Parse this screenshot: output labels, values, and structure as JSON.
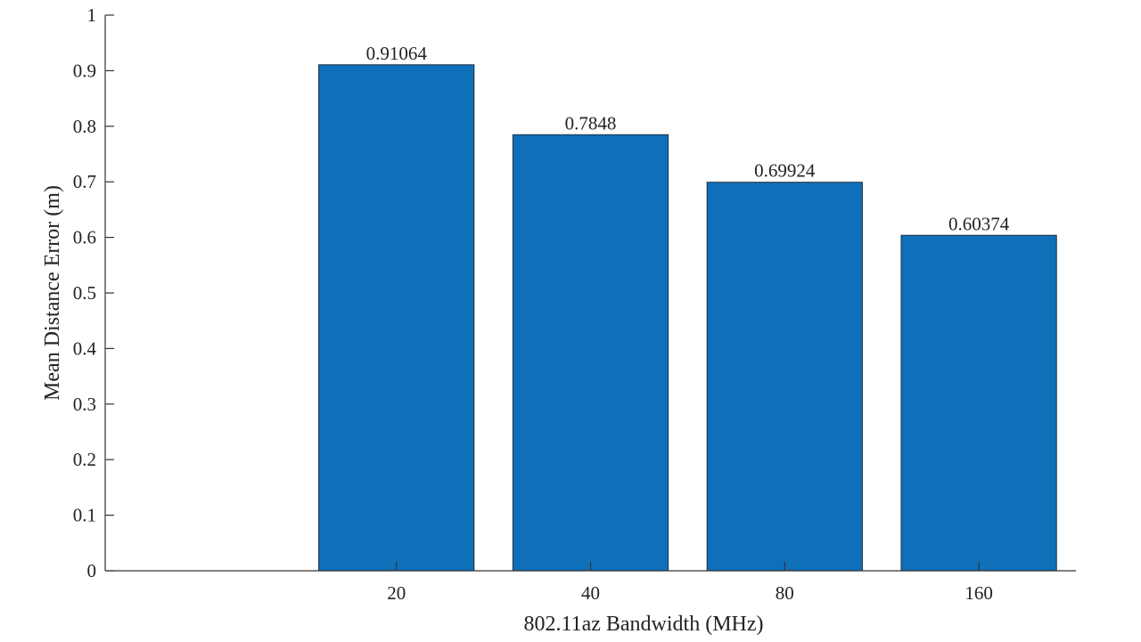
{
  "chart_data": {
    "type": "bar",
    "categories": [
      "20",
      "40",
      "80",
      "160"
    ],
    "values": [
      0.91064,
      0.7848,
      0.69924,
      0.60374
    ],
    "data_labels": [
      "0.91064",
      "0.7848",
      "0.69924",
      "0.60374"
    ],
    "title": "",
    "xlabel": "802.11az Bandwidth (MHz)",
    "ylabel": "Mean Distance Error (m)",
    "ylim": [
      0,
      1
    ],
    "yticks": [
      "0",
      "0.1",
      "0.2",
      "0.3",
      "0.4",
      "0.5",
      "0.6",
      "0.7",
      "0.8",
      "0.9",
      "1"
    ],
    "bar_color": "#0f6fb8",
    "grid": false,
    "legend": "none"
  }
}
